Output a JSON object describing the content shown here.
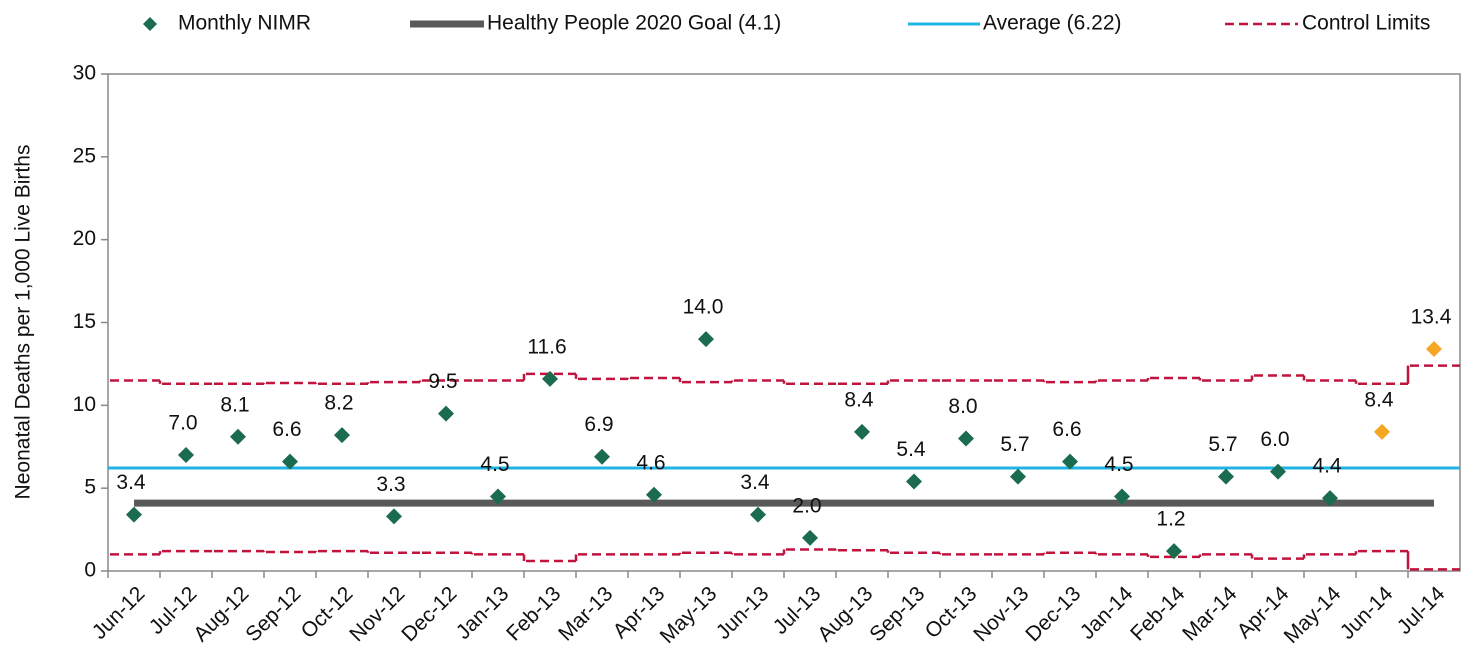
{
  "chart_data": {
    "type": "control-chart",
    "y_axis_label": "Neonatal Deaths per 1,000 Live Births",
    "categories": [
      "Jun-12",
      "Jul-12",
      "Aug-12",
      "Sep-12",
      "Oct-12",
      "Nov-12",
      "Dec-12",
      "Jan-13",
      "Feb-13",
      "Mar-13",
      "Apr-13",
      "May-13",
      "Jun-13",
      "Jul-13",
      "Aug-13",
      "Sep-13",
      "Oct-13",
      "Nov-13",
      "Dec-13",
      "Jan-14",
      "Feb-14",
      "Mar-14",
      "Apr-14",
      "May-14",
      "Jun-14",
      "Jul-14"
    ],
    "ylim": [
      0,
      30
    ],
    "yticks": [
      0,
      5,
      10,
      15,
      20,
      25,
      30
    ],
    "points": {
      "name": "Monthly NIMR",
      "color": "#1b6b4e",
      "values": [
        3.4,
        7.0,
        8.1,
        6.6,
        8.2,
        3.3,
        9.5,
        4.5,
        11.6,
        6.9,
        4.6,
        14.0,
        3.4,
        2.0,
        8.4,
        5.4,
        8.0,
        5.7,
        6.6,
        4.5,
        1.2,
        5.7,
        6.0,
        4.4,
        8.4,
        13.4
      ],
      "value_labels": [
        "3.4",
        "7.0",
        "8.1",
        "6.6",
        "8.2",
        "3.3",
        "9.5",
        "4.5",
        "11.6",
        "6.9",
        "4.6",
        "14.0",
        "3.4",
        "2.0",
        "8.4",
        "5.4",
        "8.0",
        "5.7",
        "6.6",
        "4.5",
        "1.2",
        "5.7",
        "6.0",
        "4.4",
        "8.4",
        "13.4"
      ],
      "point_colors": [
        "#1b6b4e",
        "#1b6b4e",
        "#1b6b4e",
        "#1b6b4e",
        "#1b6b4e",
        "#1b6b4e",
        "#1b6b4e",
        "#1b6b4e",
        "#1b6b4e",
        "#1b6b4e",
        "#1b6b4e",
        "#1b6b4e",
        "#1b6b4e",
        "#1b6b4e",
        "#1b6b4e",
        "#1b6b4e",
        "#1b6b4e",
        "#1b6b4e",
        "#1b6b4e",
        "#1b6b4e",
        "#1b6b4e",
        "#1b6b4e",
        "#1b6b4e",
        "#1b6b4e",
        "#f5a623",
        "#f5a623"
      ]
    },
    "goal": {
      "name": "Healthy People 2020 Goal (4.1)",
      "color": "#595959",
      "value": 4.1
    },
    "average": {
      "name": "Average (6.22)",
      "color": "#1fb4e4",
      "value": 6.22
    },
    "control_limits": {
      "name": "Control Limits",
      "color": "#c0143c",
      "upper": [
        11.5,
        11.3,
        11.3,
        11.35,
        11.3,
        11.4,
        11.5,
        11.5,
        11.9,
        11.6,
        11.65,
        11.4,
        11.5,
        11.3,
        11.3,
        11.5,
        11.5,
        11.5,
        11.4,
        11.5,
        11.65,
        11.5,
        11.8,
        11.5,
        11.3,
        12.4
      ],
      "lower": [
        1.0,
        1.2,
        1.2,
        1.15,
        1.2,
        1.1,
        1.1,
        1.0,
        0.6,
        1.0,
        1.0,
        1.1,
        1.0,
        1.3,
        1.25,
        1.1,
        1.0,
        1.0,
        1.1,
        1.0,
        0.85,
        1.0,
        0.75,
        1.0,
        1.2,
        0.1
      ]
    }
  }
}
